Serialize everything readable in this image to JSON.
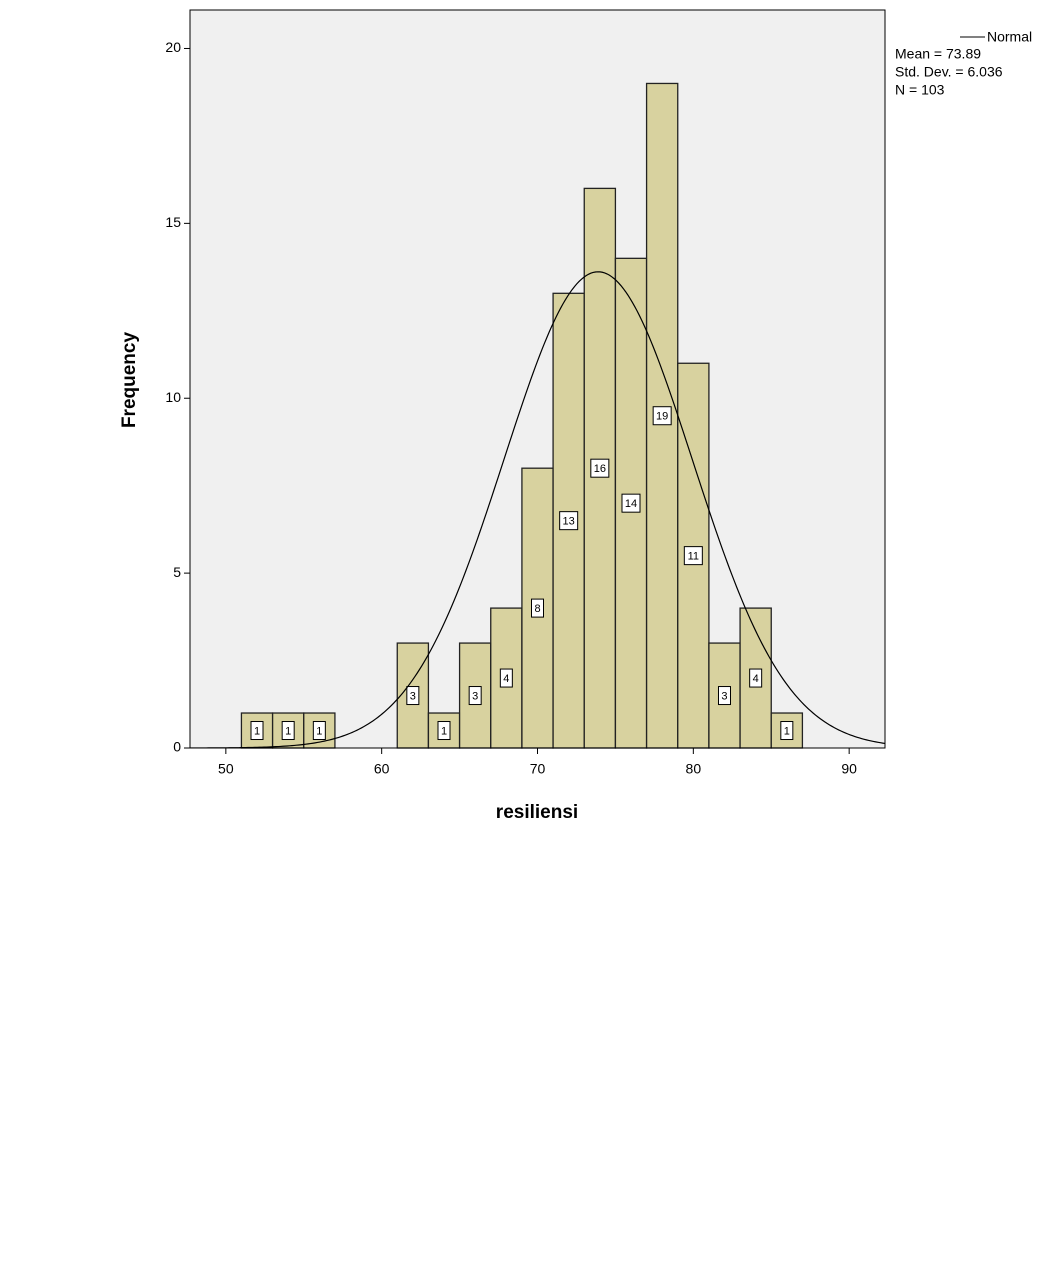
{
  "chart_data": {
    "type": "histogram",
    "x_label": "resiliensi",
    "y_label": "Frequency",
    "bins": [
      51,
      53,
      55,
      57,
      59,
      61,
      63,
      65,
      67,
      69,
      71,
      73,
      75,
      77,
      79,
      81,
      83,
      85,
      87
    ],
    "values": [
      1,
      1,
      1,
      0,
      0,
      3,
      1,
      3,
      4,
      8,
      13,
      16,
      14,
      19,
      11,
      3,
      4,
      1
    ],
    "color": "#d4cd90",
    "xlim": [
      47.7,
      92.3
    ],
    "xticks": [
      50,
      60,
      70,
      80,
      90
    ],
    "ylim": [
      0,
      21.1
    ],
    "yticks": [
      0,
      5,
      10,
      15,
      20
    ],
    "normal": {
      "name": "Normal",
      "mean": {
        "value": 73.89,
        "label": "Mean = 73.89"
      },
      "sd": {
        "value": 6.036,
        "label": "Std. Dev. = 6.036"
      },
      "n": {
        "value": 103,
        "label": "N = 103"
      }
    }
  }
}
